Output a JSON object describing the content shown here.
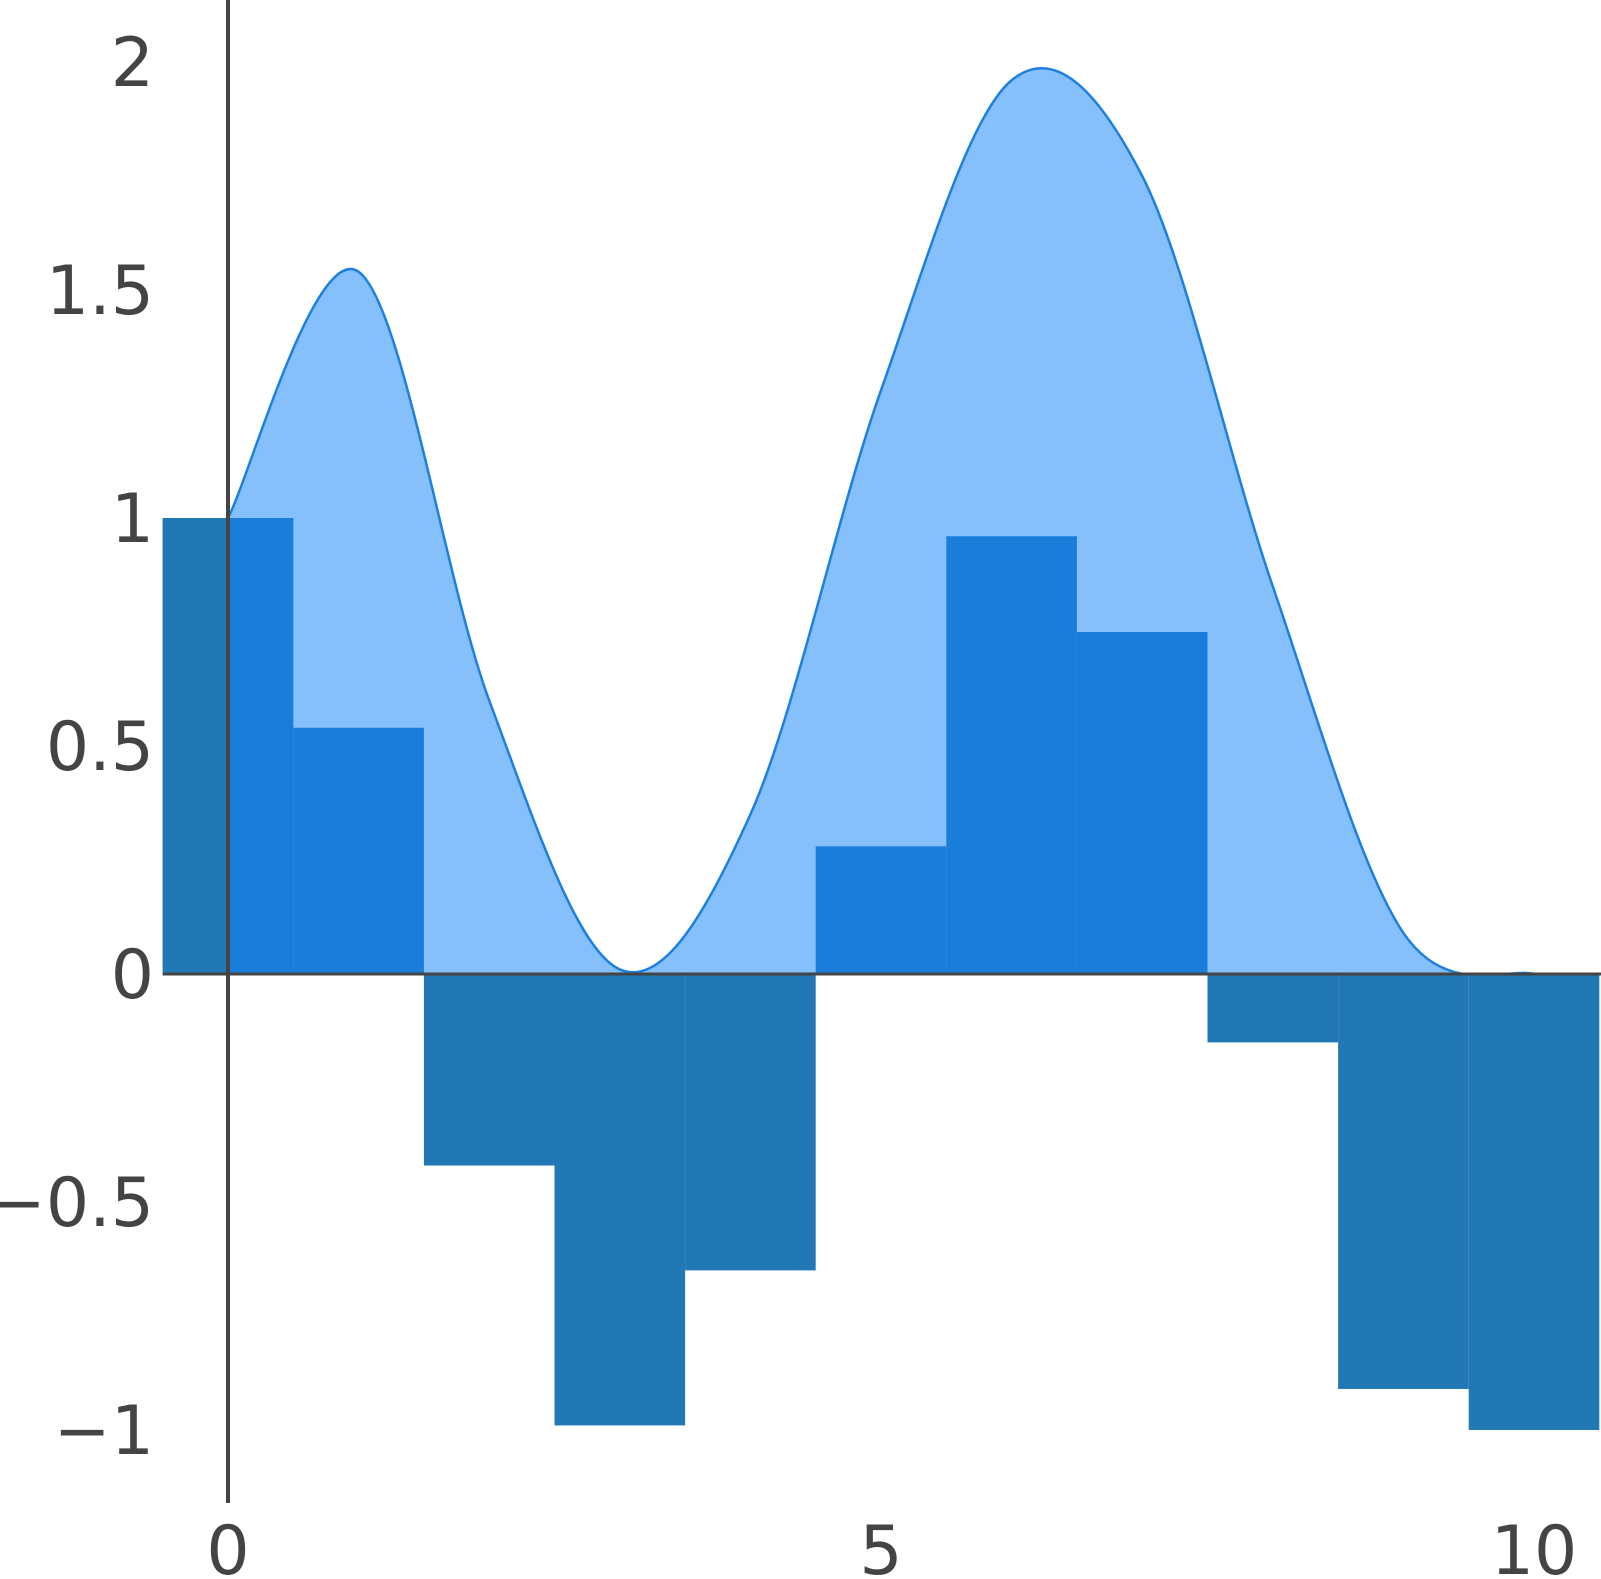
{
  "chart_data": {
    "type": "bar",
    "title": "",
    "xlabel": "",
    "ylabel": "",
    "xlim": [
      -0.5,
      10.5
    ],
    "ylim": [
      -1.17,
      2.12
    ],
    "grid": false,
    "legend": "none",
    "x_ticks": [
      {
        "value": 0,
        "label": "0"
      },
      {
        "value": 5,
        "label": "5"
      },
      {
        "value": 10,
        "label": "10"
      }
    ],
    "y_ticks": [
      {
        "value": 2,
        "label": "2"
      },
      {
        "value": 1.5,
        "label": "1.5"
      },
      {
        "value": 1,
        "label": "1"
      },
      {
        "value": 0.5,
        "label": "0.5"
      },
      {
        "value": 0,
        "label": "0"
      },
      {
        "value": -0.5,
        "label": "−0.5"
      },
      {
        "value": -1,
        "label": "−1"
      }
    ],
    "bar_width": 1,
    "x": [
      0,
      1,
      2,
      3,
      4,
      5,
      6,
      7,
      8,
      9,
      10
    ],
    "values": [
      1.0,
      0.54,
      -0.42,
      -0.99,
      -0.65,
      0.28,
      0.96,
      0.75,
      -0.15,
      -0.91,
      -1.0
    ],
    "area": {
      "x": [
        0,
        1,
        2,
        3,
        4,
        5,
        6,
        7,
        8,
        9,
        10,
        10.3
      ],
      "y": [
        1.0,
        1.54,
        0.6,
        0.01,
        0.35,
        1.28,
        1.96,
        1.75,
        0.85,
        0.09,
        0.0,
        0.0
      ]
    },
    "colors": {
      "bar_negative": "#2178b4",
      "bar_positive": "#1a7dd9",
      "area_fill": "#85c0fd",
      "area_line": "#1c80e0",
      "axis": "#444444",
      "text": "#444444"
    }
  }
}
